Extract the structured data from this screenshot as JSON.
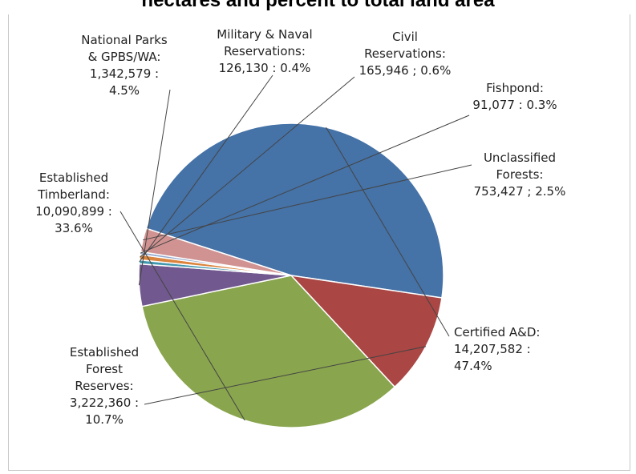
{
  "chart_data": {
    "type": "pie",
    "title": "hectares and percent to total land area",
    "slices": [
      {
        "name": "Certified A&D",
        "value_text": "14,207,582",
        "percent_text": "47.4%",
        "value": 14207582,
        "percent": 47.4,
        "color": "#4572A7"
      },
      {
        "name": "Established Forest Reserves",
        "value_text": "3,222,360",
        "percent_text": "10.7%",
        "value": 3222360,
        "percent": 10.7,
        "color": "#AA4643"
      },
      {
        "name": "Established Timberland",
        "value_text": "10,090,899",
        "percent_text": "33.6%",
        "value": 10090899,
        "percent": 33.6,
        "color": "#89A54E"
      },
      {
        "name": "National Parks & GPBS/WA",
        "value_text": "1,342,579",
        "percent_text": "4.5%",
        "value": 1342579,
        "percent": 4.5,
        "color": "#71588F"
      },
      {
        "name": "Military & Naval Reservations",
        "value_text": "126,130",
        "percent_text": "0.4%",
        "value": 126130,
        "percent": 0.4,
        "color": "#4198AF"
      },
      {
        "name": "Civil Reservations",
        "value_text": "165,946",
        "percent_text": "0.6%",
        "value": 165946,
        "percent": 0.6,
        "color": "#DB843D"
      },
      {
        "name": "Fishpond",
        "value_text": "91,077",
        "percent_text": "0.3%",
        "value": 91077,
        "percent": 0.3,
        "color": "#93A9CF"
      },
      {
        "name": "Unclassified Forests",
        "value_text": "753,427",
        "percent_text": "2.5%",
        "value": 753427,
        "percent": 2.5,
        "color": "#D19392"
      }
    ],
    "labels": [
      {
        "lines": [
          "Certified A&D:",
          "14,207,582 :",
          "47.4%"
        ]
      },
      {
        "lines": [
          "Established",
          "Forest",
          "Reserves:",
          "3,222,360 :",
          "10.7%"
        ]
      },
      {
        "lines": [
          "Established",
          "Timberland:",
          "10,090,899 :",
          "33.6%"
        ]
      },
      {
        "lines": [
          "National Parks",
          "& GPBS/WA:",
          "1,342,579 :",
          "4.5%"
        ]
      },
      {
        "lines": [
          "Military & Naval",
          "Reservations:",
          "126,130 : 0.4%"
        ]
      },
      {
        "lines": [
          "Civil",
          "Reservations:",
          "165,946 ; 0.6%"
        ]
      },
      {
        "lines": [
          "Fishpond:",
          "91,077 : 0.3%"
        ]
      },
      {
        "lines": [
          "Unclassified",
          "Forests:",
          "753,427 ; 2.5%"
        ]
      }
    ]
  }
}
